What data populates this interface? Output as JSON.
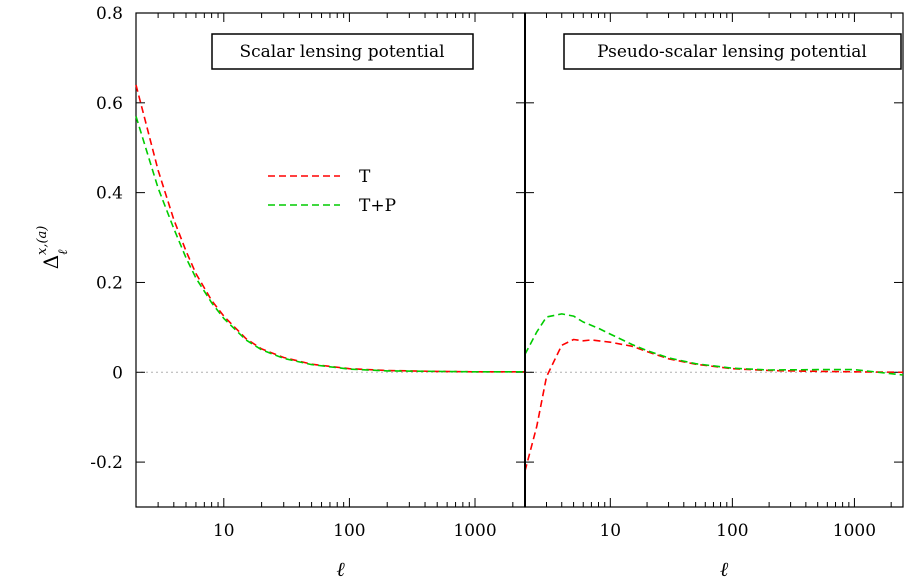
{
  "chart_data": [
    {
      "type": "line",
      "title": "Scalar lensing potential",
      "xlabel": "ℓ",
      "ylabel": "Δ",
      "ylabel_superscript": "x,(a)",
      "ylabel_subscript": "ℓ",
      "xscale": "log",
      "xlim": [
        2,
        2500
      ],
      "ylim": [
        -0.3,
        0.8
      ],
      "xticks": [
        10,
        100,
        1000
      ],
      "xtick_labels": [
        "10",
        "100",
        "1000"
      ],
      "yticks": [
        -0.2,
        0,
        0.2,
        0.4,
        0.6,
        0.8
      ],
      "ytick_labels": [
        "-0.2",
        "0",
        "0.2",
        "0.4",
        "0.6",
        "0.8"
      ],
      "zero_line": true,
      "legend": "center",
      "series": [
        {
          "name": "T",
          "color": "#ff0000",
          "dash": "dashed",
          "x": [
            2,
            3,
            4,
            5,
            6,
            8,
            10,
            15,
            20,
            30,
            50,
            100,
            200,
            500,
            1000,
            2500
          ],
          "y": [
            0.64,
            0.45,
            0.34,
            0.27,
            0.22,
            0.16,
            0.125,
            0.075,
            0.052,
            0.033,
            0.018,
            0.008,
            0.004,
            0.002,
            0.001,
            0.001
          ]
        },
        {
          "name": "T+P",
          "color": "#00cc00",
          "dash": "dashed",
          "x": [
            2,
            3,
            4,
            5,
            6,
            8,
            10,
            15,
            20,
            30,
            50,
            100,
            200,
            500,
            1000,
            2500
          ],
          "y": [
            0.57,
            0.41,
            0.32,
            0.255,
            0.21,
            0.155,
            0.12,
            0.072,
            0.05,
            0.031,
            0.017,
            0.007,
            0.003,
            0.002,
            0.001,
            0.001
          ]
        }
      ]
    },
    {
      "type": "line",
      "title": "Pseudo-scalar lensing potential",
      "xlabel": "ℓ",
      "xscale": "log",
      "xlim": [
        2,
        2500
      ],
      "ylim": [
        -0.3,
        0.8
      ],
      "xticks": [
        10,
        100,
        1000
      ],
      "xtick_labels": [
        "10",
        "100",
        "1000"
      ],
      "zero_line": true,
      "series": [
        {
          "name": "T",
          "color": "#ff0000",
          "dash": "dashed",
          "x": [
            2,
            2.5,
            3,
            4,
            5,
            6,
            7,
            8,
            10,
            15,
            20,
            30,
            50,
            100,
            200,
            500,
            1000,
            2500
          ],
          "y": [
            -0.22,
            -0.12,
            -0.01,
            0.06,
            0.073,
            0.07,
            0.072,
            0.07,
            0.067,
            0.058,
            0.046,
            0.03,
            0.018,
            0.008,
            0.004,
            0.002,
            0.001,
            0.0
          ]
        },
        {
          "name": "T+P",
          "color": "#00cc00",
          "dash": "dashed",
          "x": [
            2,
            2.5,
            3,
            4,
            5,
            6,
            8,
            10,
            15,
            20,
            30,
            50,
            100,
            200,
            500,
            1000,
            2500
          ],
          "y": [
            0.04,
            0.09,
            0.123,
            0.13,
            0.125,
            0.112,
            0.098,
            0.085,
            0.062,
            0.048,
            0.032,
            0.019,
            0.009,
            0.005,
            0.006,
            0.006,
            -0.006
          ]
        }
      ]
    }
  ]
}
